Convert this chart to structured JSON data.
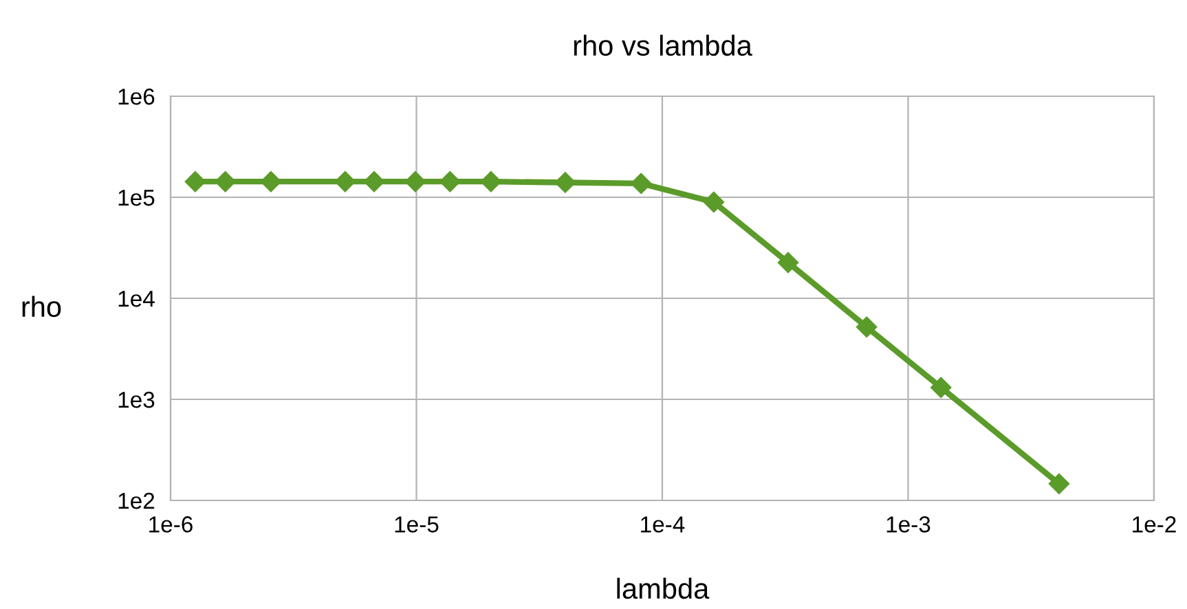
{
  "chart_data": {
    "type": "line",
    "title": "rho vs lambda",
    "xlabel": "lambda",
    "ylabel": "rho",
    "log": "xy",
    "grid": true,
    "marker": "diamond",
    "line_style": "solid",
    "xlim": [
      1e-06,
      0.01
    ],
    "xticks": [
      {
        "value": 1e-06,
        "label": "1e-6"
      },
      {
        "value": 1e-05,
        "label": "1e-5"
      },
      {
        "value": 0.0001,
        "label": "1e-4"
      },
      {
        "value": 0.001,
        "label": "1e-3"
      },
      {
        "value": 0.01,
        "label": "1e-2"
      }
    ],
    "ylim": [
      100,
      1000000
    ],
    "yticks": [
      {
        "value": 100,
        "label": "1e2"
      },
      {
        "value": 1000,
        "label": "1e3"
      },
      {
        "value": 10000,
        "label": "1e4"
      },
      {
        "value": 100000,
        "label": "1e5"
      },
      {
        "value": 1000000,
        "label": "1e6"
      }
    ],
    "series": [
      {
        "color": "#5b9b2a",
        "x": [
          1.26e-06,
          1.67e-06,
          2.56e-06,
          5.13e-06,
          6.73e-06,
          9.9e-06,
          1.37e-05,
          2.01e-05,
          4.03e-05,
          8.2e-05,
          0.000162,
          0.000325,
          0.000678,
          0.00136,
          0.00411
        ],
        "values": [
          143000,
          143000,
          143000,
          143000,
          143000,
          143000,
          143000,
          143000,
          140000,
          137000,
          89600,
          22600,
          5200,
          1310,
          146
        ]
      }
    ]
  }
}
